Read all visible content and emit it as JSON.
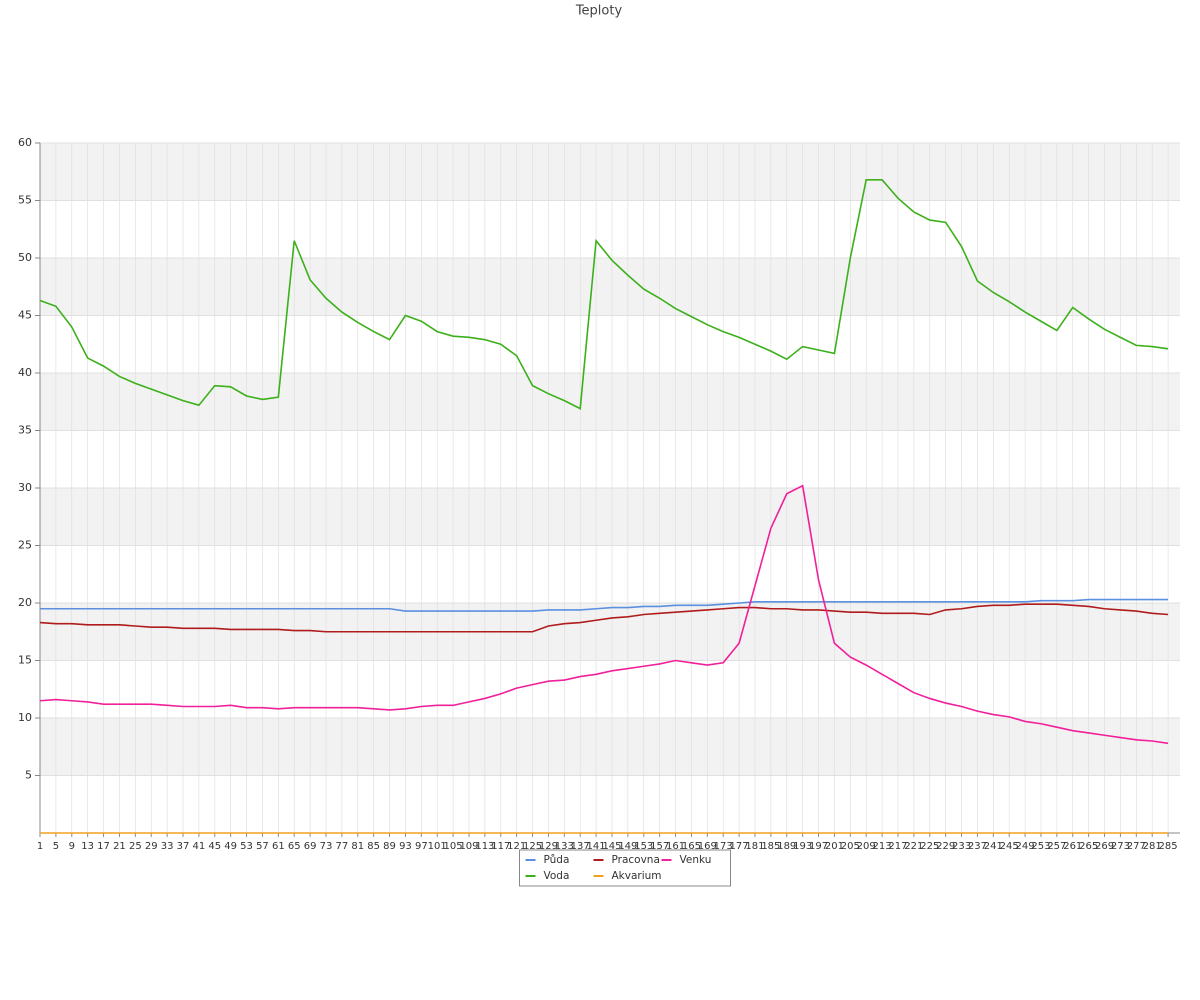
{
  "chart_data": {
    "type": "line",
    "title": "Teploty",
    "x": [
      1,
      5,
      9,
      13,
      17,
      21,
      25,
      29,
      33,
      37,
      41,
      45,
      49,
      53,
      57,
      61,
      65,
      69,
      73,
      77,
      81,
      85,
      89,
      93,
      97,
      101,
      105,
      109,
      113,
      117,
      121,
      125,
      129,
      133,
      137,
      141,
      145,
      149,
      153,
      157,
      161,
      165,
      169,
      173,
      177,
      181,
      185,
      189,
      193,
      197,
      201,
      205,
      209,
      213,
      217,
      221,
      225,
      229,
      233,
      237,
      241,
      245,
      249,
      253,
      257,
      261,
      265,
      269,
      273,
      277,
      281,
      285
    ],
    "xlim": [
      1,
      288
    ],
    "xticks": [
      1,
      5,
      9,
      13,
      17,
      21,
      25,
      29,
      33,
      37,
      41,
      45,
      49,
      53,
      57,
      61,
      65,
      69,
      73,
      77,
      81,
      85,
      89,
      93,
      97,
      101,
      105,
      109,
      113,
      117,
      121,
      125,
      129,
      133,
      137,
      141,
      145,
      149,
      153,
      157,
      161,
      165,
      169,
      173,
      177,
      181,
      185,
      189,
      193,
      197,
      201,
      205,
      209,
      213,
      217,
      221,
      225,
      229,
      233,
      237,
      241,
      245,
      249,
      253,
      257,
      261,
      265,
      269,
      273,
      277,
      281,
      285
    ],
    "ylim": [
      0,
      60
    ],
    "yticks": [
      5,
      10,
      15,
      20,
      25,
      30,
      35,
      40,
      45,
      50,
      55,
      60
    ],
    "grid": true,
    "legend": "bottom",
    "series": [
      {
        "name": "Půda",
        "color": "#5b8fe0",
        "values": [
          19.5,
          19.5,
          19.5,
          19.5,
          19.5,
          19.5,
          19.5,
          19.5,
          19.5,
          19.5,
          19.5,
          19.5,
          19.5,
          19.5,
          19.5,
          19.5,
          19.5,
          19.5,
          19.5,
          19.5,
          19.5,
          19.5,
          19.5,
          19.3,
          19.3,
          19.3,
          19.3,
          19.3,
          19.3,
          19.3,
          19.3,
          19.3,
          19.4,
          19.4,
          19.4,
          19.5,
          19.6,
          19.6,
          19.7,
          19.7,
          19.8,
          19.8,
          19.8,
          19.9,
          20.0,
          20.1,
          20.1,
          20.1,
          20.1,
          20.1,
          20.1,
          20.1,
          20.1,
          20.1,
          20.1,
          20.1,
          20.1,
          20.1,
          20.1,
          20.1,
          20.1,
          20.1,
          20.1,
          20.2,
          20.2,
          20.2,
          20.3,
          20.3,
          20.3,
          20.3,
          20.3,
          20.3
        ]
      },
      {
        "name": "Voda",
        "color": "#3cb01a",
        "values": [
          46.3,
          45.8,
          44,
          41.3,
          40.6,
          39.7,
          39.1,
          38.6,
          38.1,
          37.6,
          37.2,
          38.9,
          38.8,
          38.0,
          37.7,
          37.9,
          51.5,
          48.1,
          46.5,
          45.3,
          44.4,
          43.6,
          42.9,
          45.0,
          44.5,
          43.6,
          43.2,
          43.1,
          42.9,
          42.5,
          41.5,
          38.9,
          38.2,
          37.6,
          36.9,
          51.5,
          49.8,
          48.5,
          47.3,
          46.5,
          45.6,
          44.9,
          44.2,
          43.6,
          43.1,
          42.5,
          41.9,
          41.2,
          42.3,
          42.0,
          41.7,
          50,
          56.8,
          56.8,
          55.2,
          54,
          53.3,
          53.1,
          51,
          48,
          47,
          46.2,
          45.3,
          44.5,
          43.7,
          45.7,
          44.7,
          43.8,
          43.1,
          42.4,
          42.3,
          42.1
        ]
      },
      {
        "name": "Pracovna",
        "color": "#b01c1c",
        "values": [
          18.3,
          18.2,
          18.2,
          18.1,
          18.1,
          18.1,
          18.0,
          17.9,
          17.9,
          17.8,
          17.8,
          17.8,
          17.7,
          17.7,
          17.7,
          17.7,
          17.6,
          17.6,
          17.5,
          17.5,
          17.5,
          17.5,
          17.5,
          17.5,
          17.5,
          17.5,
          17.5,
          17.5,
          17.5,
          17.5,
          17.5,
          17.5,
          18.0,
          18.2,
          18.3,
          18.5,
          18.7,
          18.8,
          19.0,
          19.1,
          19.2,
          19.3,
          19.4,
          19.5,
          19.6,
          19.6,
          19.5,
          19.5,
          19.4,
          19.4,
          19.3,
          19.2,
          19.2,
          19.1,
          19.1,
          19.1,
          19.0,
          19.4,
          19.5,
          19.7,
          19.8,
          19.8,
          19.9,
          19.9,
          19.9,
          19.8,
          19.7,
          19.5,
          19.4,
          19.3,
          19.1,
          19.0
        ]
      },
      {
        "name": "Akvarium",
        "color": "#f0a020",
        "values": [
          0,
          0,
          0,
          0,
          0,
          0,
          0,
          0,
          0,
          0,
          0,
          0,
          0,
          0,
          0,
          0,
          0,
          0,
          0,
          0,
          0,
          0,
          0,
          0,
          0,
          0,
          0,
          0,
          0,
          0,
          0,
          0,
          0,
          0,
          0,
          0,
          0,
          0,
          0,
          0,
          0,
          0,
          0,
          0,
          0,
          0,
          0,
          0,
          0,
          0,
          0,
          0,
          0,
          0,
          0,
          0,
          0,
          0,
          0,
          0,
          0,
          0,
          0,
          0,
          0,
          0,
          0,
          0,
          0,
          0,
          0,
          0
        ]
      },
      {
        "name": "Venku",
        "color": "#f0209a",
        "values": [
          11.5,
          11.6,
          11.5,
          11.4,
          11.2,
          11.2,
          11.2,
          11.2,
          11.1,
          11.0,
          11.0,
          11.0,
          11.1,
          10.9,
          10.9,
          10.8,
          10.9,
          10.9,
          10.9,
          10.9,
          10.9,
          10.8,
          10.7,
          10.8,
          11.0,
          11.1,
          11.1,
          11.4,
          11.7,
          12.1,
          12.6,
          12.9,
          13.2,
          13.3,
          13.6,
          13.8,
          14.1,
          14.3,
          14.5,
          14.7,
          15.0,
          14.8,
          14.6,
          14.8,
          16.5,
          21.5,
          26.5,
          29.5,
          30.2,
          22,
          16.5,
          15.3,
          14.6,
          13.8,
          13.0,
          12.2,
          11.7,
          11.3,
          11.0,
          10.6,
          10.3,
          10.1,
          9.7,
          9.5,
          9.2,
          8.9,
          8.7,
          8.5,
          8.3,
          8.1,
          8.0,
          7.8
        ]
      }
    ]
  }
}
